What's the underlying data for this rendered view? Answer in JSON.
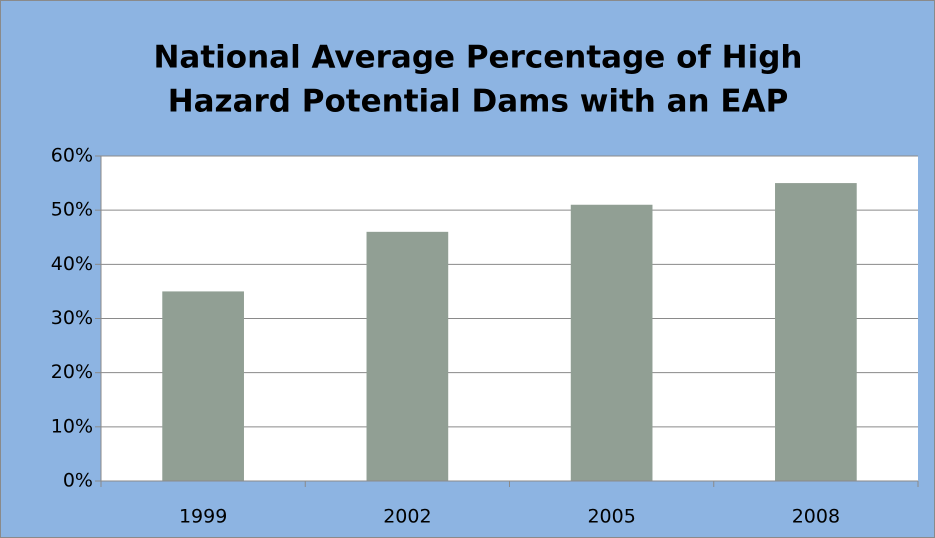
{
  "chart_data": {
    "type": "bar",
    "title": [
      "National Average Percentage of High",
      "Hazard Potential Dams with an EAP"
    ],
    "categories": [
      "1999",
      "2002",
      "2005",
      "2008"
    ],
    "values": [
      35,
      46,
      51,
      55
    ],
    "color": "#919f94",
    "ylim": [
      0,
      60
    ],
    "yticks": [
      {
        "value": 0,
        "label": "0%"
      },
      {
        "value": 10,
        "label": "10%"
      },
      {
        "value": 20,
        "label": "20%"
      },
      {
        "value": 30,
        "label": "30%"
      },
      {
        "value": 40,
        "label": "40%"
      },
      {
        "value": 50,
        "label": "50%"
      },
      {
        "value": 60,
        "label": "60%"
      }
    ],
    "grid": true
  }
}
